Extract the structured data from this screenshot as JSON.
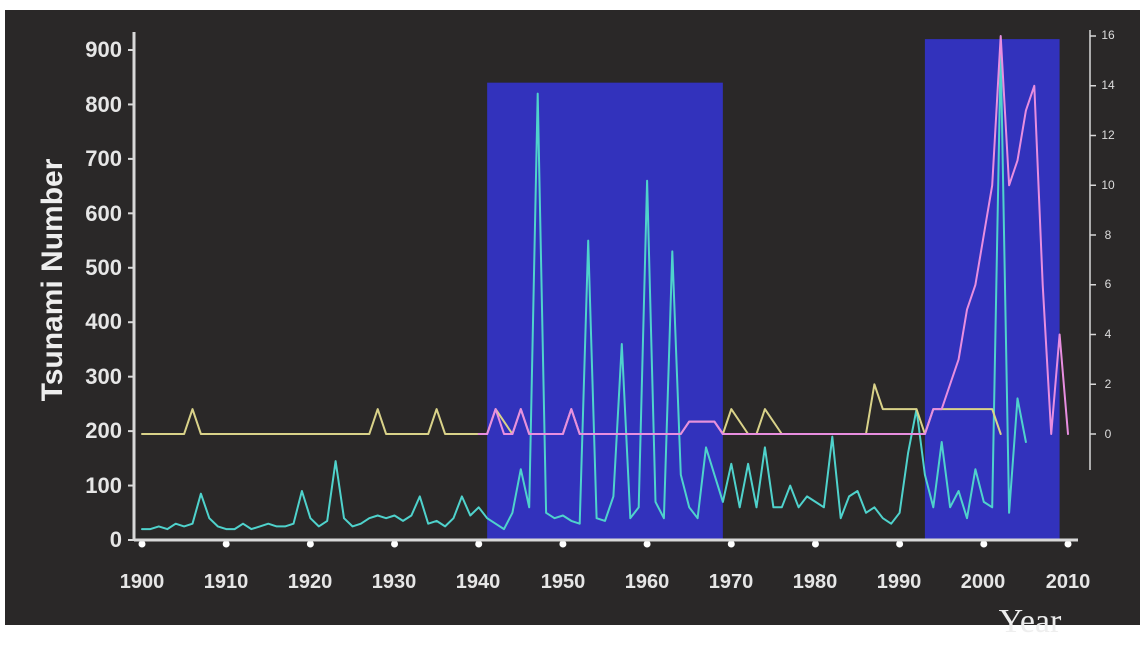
{
  "chart_data": {
    "type": "line",
    "title": "",
    "xlabel": "Year",
    "ylabel": "Tsunami Number",
    "xlim": [
      1900,
      2010
    ],
    "ylim": [
      0,
      900
    ],
    "y2lim": [
      0,
      16
    ],
    "x_ticks": [
      "1900",
      "1910",
      "1920",
      "1930",
      "1940",
      "1950",
      "1960",
      "1970",
      "1980",
      "1990",
      "2000",
      "2010"
    ],
    "y_ticks": [
      "0",
      "100",
      "200",
      "300",
      "400",
      "500",
      "600",
      "700",
      "800",
      "900"
    ],
    "y2_ticks": [
      "0",
      "2",
      "4",
      "6",
      "8",
      "10",
      "12",
      "14",
      "16"
    ],
    "highlight_periods": [
      {
        "x_start": 1941,
        "x_end": 1969,
        "y_top": 840
      },
      {
        "x_start": 1993,
        "x_end": 2009,
        "y_top": 920
      }
    ],
    "colors": {
      "background": "#2a2828",
      "highlight": "#3333cc",
      "axis": "#d8d8d8",
      "tsunami_series": "#4fd2cc",
      "yellow_series": "#d9d289",
      "pink_series": "#e88ee0"
    },
    "series": [
      {
        "key": "tsunami_number",
        "axis": "left",
        "color_key": "tsunami_series",
        "x": [
          1900,
          1901,
          1902,
          1903,
          1904,
          1905,
          1906,
          1907,
          1908,
          1909,
          1910,
          1911,
          1912,
          1913,
          1914,
          1915,
          1916,
          1917,
          1918,
          1919,
          1920,
          1921,
          1922,
          1923,
          1924,
          1925,
          1926,
          1927,
          1928,
          1929,
          1930,
          1931,
          1932,
          1933,
          1934,
          1935,
          1936,
          1937,
          1938,
          1939,
          1940,
          1941,
          1942,
          1943,
          1944,
          1945,
          1946,
          1947,
          1948,
          1949,
          1950,
          1951,
          1952,
          1953,
          1954,
          1955,
          1956,
          1957,
          1958,
          1959,
          1960,
          1961,
          1962,
          1963,
          1964,
          1965,
          1966,
          1967,
          1968,
          1969,
          1970,
          1971,
          1972,
          1973,
          1974,
          1975,
          1976,
          1977,
          1978,
          1979,
          1980,
          1981,
          1982,
          1983,
          1984,
          1985,
          1986,
          1987,
          1988,
          1989,
          1990,
          1991,
          1992,
          1993,
          1994,
          1995,
          1996,
          1997,
          1998,
          1999,
          2000,
          2001,
          2002,
          2003,
          2004,
          2005
        ],
        "y": [
          20,
          20,
          25,
          20,
          30,
          25,
          30,
          85,
          40,
          25,
          20,
          20,
          30,
          20,
          25,
          30,
          25,
          25,
          30,
          90,
          40,
          25,
          35,
          145,
          40,
          25,
          30,
          40,
          45,
          40,
          45,
          35,
          45,
          80,
          30,
          35,
          25,
          40,
          80,
          45,
          60,
          40,
          30,
          20,
          50,
          130,
          60,
          820,
          50,
          40,
          45,
          35,
          30,
          550,
          40,
          35,
          80,
          360,
          40,
          60,
          660,
          70,
          40,
          530,
          120,
          60,
          40,
          170,
          120,
          70,
          140,
          60,
          140,
          60,
          170,
          60,
          60,
          100,
          60,
          80,
          70,
          60,
          190,
          40,
          80,
          90,
          50,
          60,
          40,
          30,
          50,
          160,
          240,
          120,
          60,
          180,
          60,
          90,
          40,
          130,
          70,
          60,
          900,
          50,
          260,
          180
        ]
      },
      {
        "key": "yellow_series",
        "axis": "right",
        "color_key": "yellow_series",
        "x": [
          1900,
          1905,
          1906,
          1907,
          1927,
          1928,
          1929,
          1934,
          1935,
          1936,
          1940,
          1941,
          1942,
          1944,
          1945,
          1946,
          1950,
          1951,
          1952,
          1964,
          1965,
          1968,
          1969,
          1970,
          1972,
          1973,
          1974,
          1976,
          1986,
          1987,
          1988,
          1991,
          1992,
          1993,
          1994,
          2001,
          2002
        ],
        "y": [
          0,
          0,
          1,
          0,
          0,
          1,
          0,
          0,
          1,
          0,
          0,
          0,
          1,
          0,
          1,
          0,
          0,
          1,
          0,
          0,
          0.5,
          0.5,
          0,
          1,
          0,
          0,
          1,
          0,
          0,
          2,
          1,
          1,
          1,
          0,
          1,
          1,
          0
        ]
      },
      {
        "key": "pink_series",
        "axis": "right",
        "color_key": "pink_series",
        "x": [
          1940,
          1941,
          1942,
          1943,
          1944,
          1945,
          1946,
          1950,
          1951,
          1952,
          1964,
          1965,
          1968,
          1969,
          1993,
          1994,
          1995,
          1996,
          1997,
          1998,
          1999,
          2000,
          2001,
          2002,
          2003,
          2004,
          2005,
          2006,
          2007,
          2008,
          2009,
          2010
        ],
        "y": [
          0,
          0,
          1,
          0,
          0,
          1,
          0,
          0,
          1,
          0,
          0,
          0.5,
          0.5,
          0,
          0,
          1,
          1,
          2,
          3,
          5,
          6,
          8,
          10,
          16,
          10,
          11,
          13,
          14,
          6,
          0,
          4,
          0
        ]
      }
    ]
  }
}
